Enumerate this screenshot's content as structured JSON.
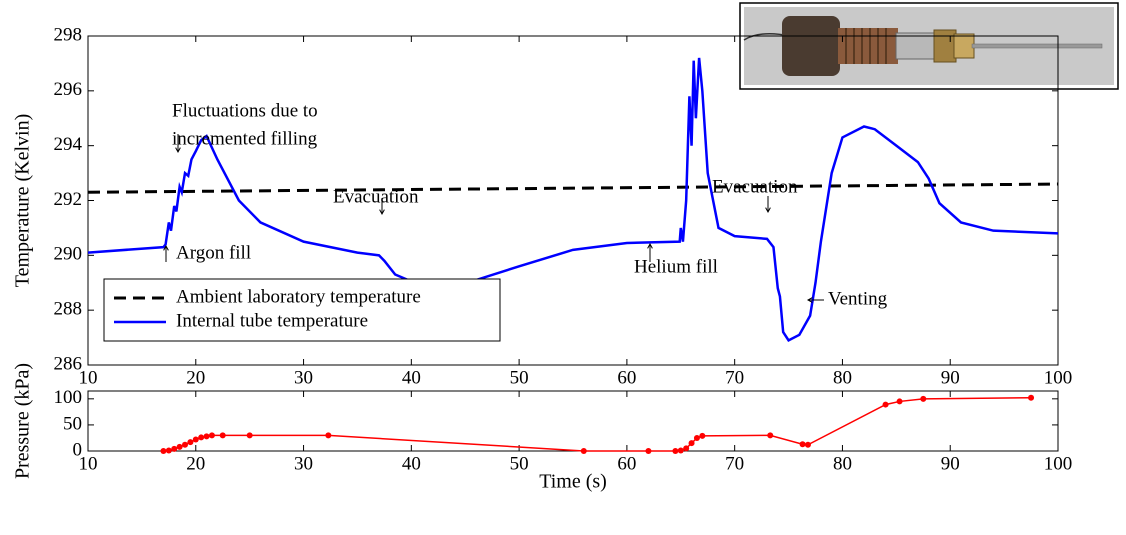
{
  "chart_data": [
    {
      "type": "line",
      "ylabel": "Temperature (Kelvin)",
      "xlim": [
        10,
        100
      ],
      "xticks": [
        10,
        20,
        30,
        40,
        50,
        60,
        70,
        80,
        90,
        100
      ],
      "ylim": [
        286,
        298
      ],
      "yticks": [
        286,
        288,
        290,
        292,
        294,
        296,
        298
      ],
      "legend": "lower left",
      "series": [
        {
          "name": "Ambient laboratory temperature",
          "color": "#000000",
          "style": "dashed",
          "x": [
            10,
            100
          ],
          "values": [
            292.3,
            292.6
          ]
        },
        {
          "name": "Internal tube temperature",
          "color": "#0000ff",
          "style": "solid",
          "x": [
            10,
            17,
            17.2,
            17.5,
            17.7,
            18,
            18.2,
            18.5,
            18.7,
            19,
            19.3,
            19.6,
            20,
            20.5,
            21,
            22,
            24,
            26,
            30,
            35,
            37,
            37.5,
            38.5,
            40,
            43,
            46,
            50,
            55,
            60,
            64.9,
            65,
            65.2,
            65.5,
            65.8,
            66,
            66.2,
            66.4,
            66.7,
            67,
            67.5,
            68,
            68.5,
            70,
            73,
            73.6,
            74,
            74.2,
            74.5,
            75,
            76,
            77,
            77.5,
            78,
            79,
            80,
            82,
            83,
            85,
            87,
            88,
            89,
            91,
            94,
            100
          ],
          "values": [
            290.1,
            290.3,
            290.4,
            291.2,
            290.9,
            291.8,
            291.6,
            292.5,
            292.3,
            293,
            292.9,
            293.5,
            293.8,
            294.2,
            294.35,
            293.5,
            292,
            291.2,
            290.5,
            290.1,
            290,
            289.8,
            289.3,
            289.05,
            289,
            289.1,
            289.6,
            290.2,
            290.45,
            290.5,
            291,
            290.5,
            292,
            295.8,
            294,
            297.1,
            295,
            297.2,
            296,
            293,
            292,
            291,
            290.7,
            290.6,
            290.3,
            288.8,
            288.5,
            287.2,
            286.9,
            287.1,
            287.8,
            289,
            290.5,
            293,
            294.3,
            294.7,
            294.6,
            294,
            293.4,
            292.8,
            291.9,
            291.2,
            290.9,
            290.8
          ]
        }
      ],
      "annotations": [
        "Fluctuations due to",
        "incremented filling",
        "Argon fill",
        "Evacuation",
        "Helium fill",
        "Evacuation",
        "Venting"
      ]
    },
    {
      "type": "line",
      "ylabel": "Pressure (kPa)",
      "xlabel": "Time (s)",
      "markers": true,
      "xlim": [
        10,
        100
      ],
      "xticks": [
        10,
        20,
        30,
        40,
        50,
        60,
        70,
        80,
        90,
        100
      ],
      "ylim": [
        0,
        115
      ],
      "yticks": [
        0,
        50,
        100
      ],
      "series": [
        {
          "color": "#ff0000",
          "x": [
            17,
            17.5,
            18,
            18.5,
            19,
            19.5,
            20,
            20.5,
            21,
            21.5,
            22.5,
            25,
            32.3,
            56,
            62,
            64.5,
            65,
            65.5,
            66,
            66.5,
            67,
            73.3,
            76.3,
            76.8,
            84,
            85.3,
            87.5,
            97.5
          ],
          "values": [
            0,
            1,
            4,
            8,
            12,
            17,
            22,
            26,
            28,
            30,
            30,
            30,
            30,
            0,
            0,
            0,
            1,
            5,
            15,
            25,
            29,
            30,
            13,
            12,
            89,
            95,
            100,
            102
          ]
        }
      ]
    }
  ]
}
